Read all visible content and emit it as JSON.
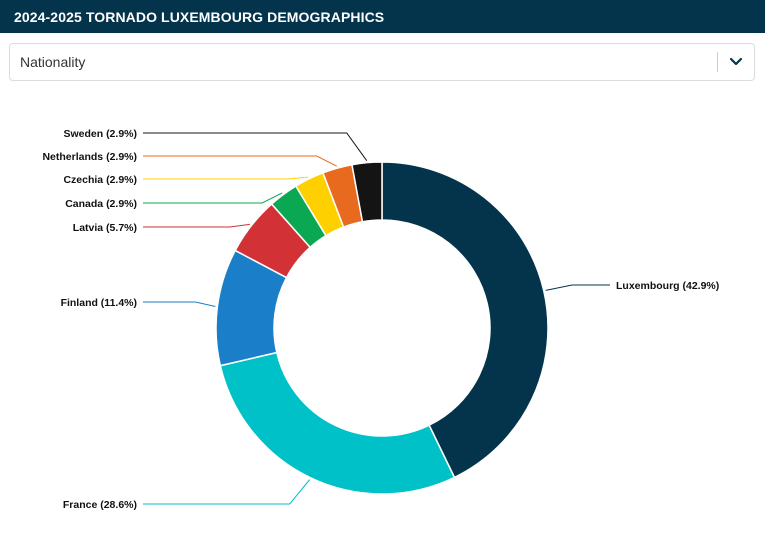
{
  "header": {
    "title": "2024-2025 TORNADO LUXEMBOURG DEMOGRAPHICS"
  },
  "filter": {
    "selected": "Nationality"
  },
  "icons": {
    "dropdown": "chevron-down-icon"
  },
  "chart_data": {
    "type": "pie",
    "subtype": "donut",
    "title": "",
    "slices": [
      {
        "label": "Luxembourg (42.9%)",
        "value": 42.9,
        "color": "#04344c"
      },
      {
        "label": "France (28.6%)",
        "value": 28.6,
        "color": "#00c1c8"
      },
      {
        "label": "Finland (11.4%)",
        "value": 11.4,
        "color": "#1a7fc8"
      },
      {
        "label": "Latvia (5.7%)",
        "value": 5.7,
        "color": "#d23236"
      },
      {
        "label": "Canada (2.9%)",
        "value": 2.9,
        "color": "#0aa852"
      },
      {
        "label": "Czechia (2.9%)",
        "value": 2.9,
        "color": "#ffd000"
      },
      {
        "label": "Netherlands (2.9%)",
        "value": 2.9,
        "color": "#e86a1e"
      },
      {
        "label": "Sweden (2.9%)",
        "value": 2.9,
        "color": "#141414"
      }
    ]
  }
}
